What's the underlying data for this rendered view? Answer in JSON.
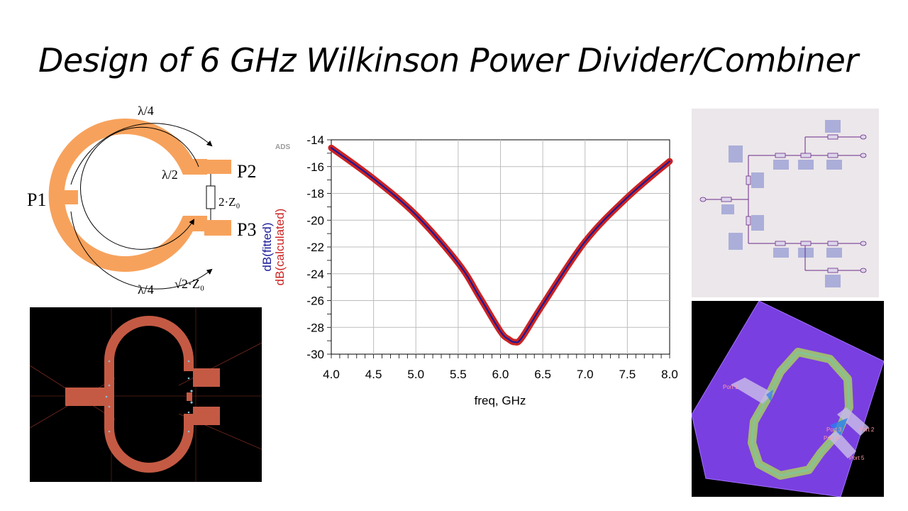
{
  "slide": {
    "title": "Design of 6 GHz Wilkinson Power Divider/Combiner"
  },
  "ring_schematic": {
    "arc_top_label": "λ/4",
    "arc_bottom_label": "λ/4",
    "inner_label": "λ/2",
    "resistor_label": "2·Z₀",
    "line_impedance": "√2·Z₀",
    "ports": [
      "P1",
      "P2",
      "P3"
    ],
    "trace_color": "#f7a25c"
  },
  "layout_2d": {
    "trace_color": "#c45a44",
    "background": "#000000"
  },
  "chart_data": {
    "type": "line",
    "watermark": "ADS",
    "xlabel": "freq, GHz",
    "ylabels": [
      "dB(fitted)",
      "dB(calculated)"
    ],
    "xlim": [
      4.0,
      8.0
    ],
    "ylim": [
      -30,
      -14
    ],
    "x_ticks": [
      "4.0",
      "4.5",
      "5.0",
      "5.5",
      "6.0",
      "6.5",
      "7.0",
      "7.5",
      "8.0"
    ],
    "y_ticks": [
      "-14",
      "-16",
      "-18",
      "-20",
      "-22",
      "-24",
      "-26",
      "-28",
      "-30"
    ],
    "grid": true,
    "series": [
      {
        "name": "dB(calculated)",
        "color": "#cc2222",
        "x": [
          4.0,
          4.5,
          5.0,
          5.5,
          5.75,
          6.0,
          6.1,
          6.17,
          6.25,
          6.5,
          7.0,
          7.5,
          8.0
        ],
        "values": [
          -14.6,
          -16.9,
          -19.6,
          -23.2,
          -25.7,
          -28.3,
          -28.9,
          -29.1,
          -28.8,
          -26.3,
          -21.6,
          -18.3,
          -15.6
        ]
      },
      {
        "name": "dB(fitted)",
        "color": "#1a1a99",
        "x": [
          4.0,
          4.5,
          5.0,
          5.5,
          5.75,
          6.0,
          6.1,
          6.17,
          6.25,
          6.5,
          7.0,
          7.5,
          8.0
        ],
        "values": [
          -14.6,
          -16.9,
          -19.6,
          -23.2,
          -25.7,
          -28.3,
          -28.9,
          -29.1,
          -28.8,
          -26.3,
          -21.6,
          -18.3,
          -15.6
        ]
      }
    ]
  },
  "netlist_view": {
    "background": "#ece7ea",
    "wire_color": "#6a2a8a",
    "label_color": "#3344bb"
  },
  "em_view": {
    "substrate_color": "#7a3fe0",
    "port_labels": [
      "Port 1",
      "Port 3",
      "Port 2",
      "Port 4",
      "Port 5"
    ]
  }
}
